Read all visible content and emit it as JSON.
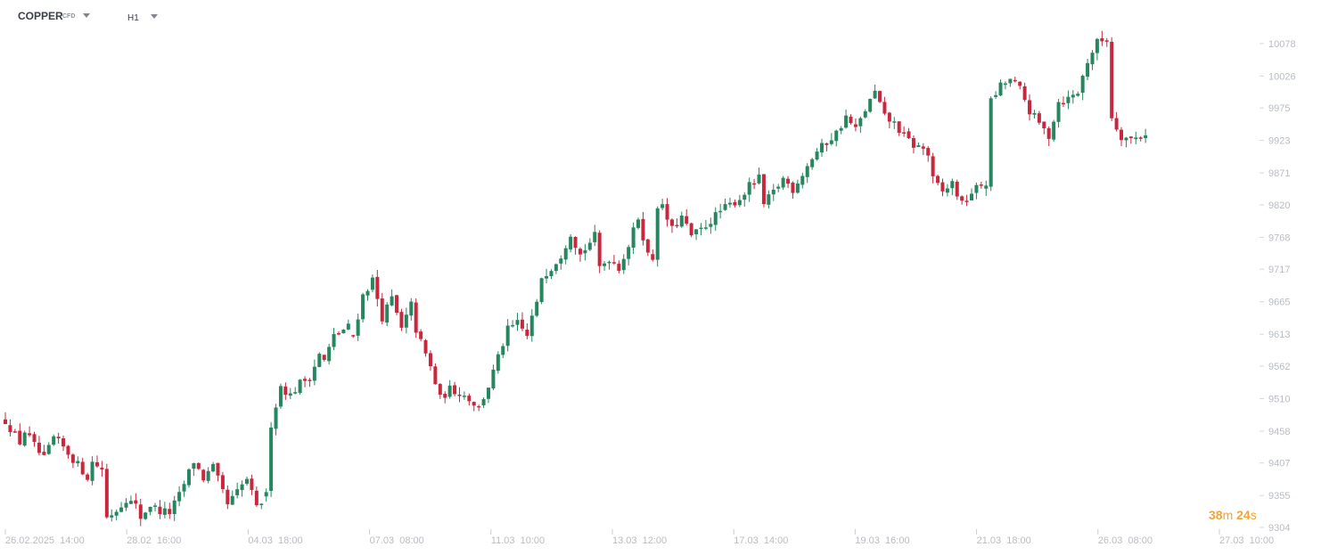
{
  "header": {
    "symbol": "COPPER",
    "symbol_type": "CFD",
    "timeframe": "H1"
  },
  "countdown": {
    "minutes": "38",
    "minutes_unit": "m",
    "seconds": "24",
    "seconds_unit": "s"
  },
  "colors": {
    "up": "#26875f",
    "down": "#c8283d",
    "axis_text": "#b8bcc3",
    "countdown": "#f0a53a"
  },
  "chart_data": {
    "type": "candlestick",
    "y_axis": {
      "range": [
        9304,
        10122
      ],
      "ticks": [
        9304,
        9355,
        9407,
        9458,
        9510,
        9562,
        9613,
        9665,
        9717,
        9768,
        9820,
        9871,
        9923,
        9975,
        10026,
        10078
      ]
    },
    "x_axis": {
      "ticks": [
        "26.02.2025  14:00",
        "28.02  16:00",
        "04.03  18:00",
        "07.03  08:00",
        "11.03  10:00",
        "13.03  12:00",
        "17.03  14:00",
        "19.03  16:00",
        "21.03  18:00",
        "26.03  08:00",
        "27.03  10:00"
      ]
    },
    "close_path": [
      [
        9475,
        0
      ],
      [
        9440,
        3
      ],
      [
        9458,
        4
      ],
      [
        9423,
        7
      ],
      [
        9413,
        8
      ],
      [
        9447,
        10
      ],
      [
        9432,
        12
      ],
      [
        9404,
        15
      ],
      [
        9385,
        17
      ],
      [
        9408,
        18
      ],
      [
        9398,
        20
      ],
      [
        9320,
        21
      ],
      [
        9332,
        23
      ],
      [
        9350,
        25
      ],
      [
        9338,
        27
      ],
      [
        9320,
        28
      ],
      [
        9340,
        30
      ],
      [
        9330,
        32
      ],
      [
        9328,
        34
      ],
      [
        9355,
        36
      ],
      [
        9392,
        38
      ],
      [
        9410,
        39
      ],
      [
        9382,
        41
      ],
      [
        9400,
        43
      ],
      [
        9360,
        45
      ],
      [
        9340,
        46
      ],
      [
        9360,
        48
      ],
      [
        9382,
        50
      ],
      [
        9334,
        52
      ],
      [
        9345,
        53
      ],
      [
        9355,
        54
      ],
      [
        9470,
        55
      ],
      [
        9530,
        57
      ],
      [
        9515,
        59
      ],
      [
        9535,
        61
      ],
      [
        9545,
        63
      ],
      [
        9580,
        65
      ],
      [
        9570,
        66
      ],
      [
        9610,
        68
      ],
      [
        9625,
        71
      ],
      [
        9610,
        72
      ],
      [
        9675,
        74
      ],
      [
        9700,
        76
      ],
      [
        9640,
        78
      ],
      [
        9670,
        80
      ],
      [
        9620,
        82
      ],
      [
        9660,
        84
      ],
      [
        9620,
        85
      ],
      [
        9580,
        87
      ],
      [
        9560,
        88
      ],
      [
        9510,
        90
      ],
      [
        9525,
        92
      ],
      [
        9520,
        94
      ],
      [
        9510,
        96
      ],
      [
        9495,
        98
      ],
      [
        9530,
        100
      ],
      [
        9575,
        102
      ],
      [
        9620,
        104
      ],
      [
        9630,
        106
      ],
      [
        9610,
        108
      ],
      [
        9640,
        109
      ],
      [
        9660,
        110
      ],
      [
        9705,
        111
      ],
      [
        9720,
        113
      ],
      [
        9740,
        115
      ],
      [
        9775,
        117
      ],
      [
        9740,
        119
      ],
      [
        9760,
        121
      ],
      [
        9770,
        122
      ],
      [
        9720,
        123
      ],
      [
        9735,
        125
      ],
      [
        9720,
        127
      ],
      [
        9755,
        129
      ],
      [
        9800,
        131
      ],
      [
        9740,
        133
      ],
      [
        9735,
        134
      ],
      [
        9820,
        135
      ],
      [
        9815,
        136
      ],
      [
        9780,
        138
      ],
      [
        9800,
        140
      ],
      [
        9770,
        142
      ],
      [
        9780,
        144
      ],
      [
        9795,
        146
      ],
      [
        9810,
        148
      ],
      [
        9820,
        150
      ],
      [
        9830,
        152
      ],
      [
        9850,
        154
      ],
      [
        9862,
        156
      ],
      [
        9820,
        157
      ],
      [
        9840,
        159
      ],
      [
        9862,
        161
      ],
      [
        9845,
        163
      ],
      [
        9870,
        165
      ],
      [
        9895,
        167
      ],
      [
        9905,
        168
      ],
      [
        9920,
        170
      ],
      [
        9935,
        172
      ],
      [
        9960,
        174
      ],
      [
        9940,
        176
      ],
      [
        9972,
        178
      ],
      [
        10000,
        180
      ],
      [
        9960,
        182
      ],
      [
        9950,
        184
      ],
      [
        9930,
        186
      ],
      [
        9915,
        188
      ],
      [
        9910,
        190
      ],
      [
        9900,
        191
      ],
      [
        9860,
        192
      ],
      [
        9840,
        194
      ],
      [
        9855,
        196
      ],
      [
        9820,
        198
      ],
      [
        9840,
        200
      ],
      [
        9852,
        202
      ],
      [
        9855,
        203
      ],
      [
        9985,
        204
      ],
      [
        10010,
        206
      ],
      [
        10020,
        208
      ],
      [
        10005,
        210
      ],
      [
        9970,
        212
      ],
      [
        9950,
        214
      ],
      [
        9930,
        216
      ],
      [
        9985,
        218
      ],
      [
        9990,
        220
      ],
      [
        10000,
        222
      ],
      [
        10050,
        224
      ],
      [
        10080,
        226
      ],
      [
        10085,
        228
      ],
      [
        9960,
        229
      ],
      [
        9930,
        231
      ],
      [
        9925,
        233
      ],
      [
        9930,
        235
      ],
      [
        9935,
        236
      ]
    ]
  }
}
